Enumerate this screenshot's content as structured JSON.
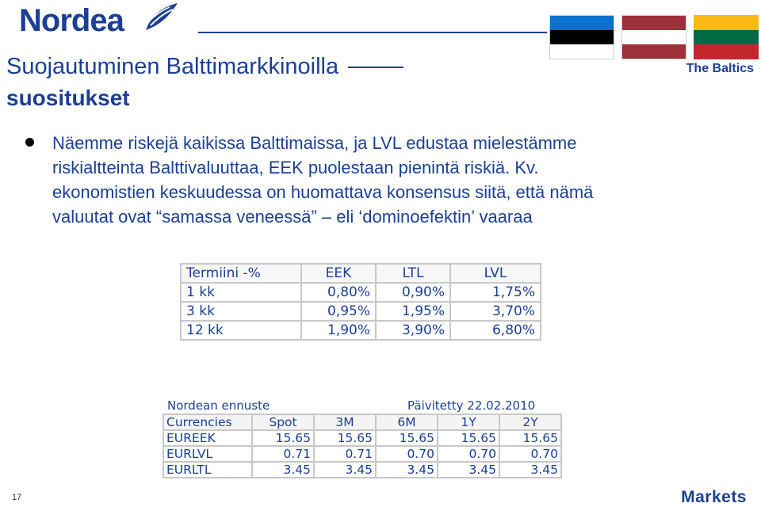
{
  "brand": {
    "logo_text": "Nordea",
    "tagline": "The Baltics",
    "footer_brand": "Markets"
  },
  "colors": {
    "brand_blue": "#1b3f93"
  },
  "flags": [
    {
      "name": "estonia-flag",
      "stripes": [
        "#0a72ce",
        "#000000",
        "#ffffff"
      ]
    },
    {
      "name": "latvia-flag",
      "stripes": [
        "#9e3039",
        "#ffffff",
        "#9e3039"
      ]
    },
    {
      "name": "lithuania-flag",
      "stripes": [
        "#fdb913",
        "#006a44",
        "#c1272d"
      ]
    }
  ],
  "title": {
    "line1": "Suojautuminen Balttimarkkinoilla",
    "line2": "suositukset"
  },
  "bullet": {
    "lines": [
      "Näemme riskejä kaikissa Balttimaissa, ja LVL edustaa mielestämme",
      "riskialtteinta Balttivaluuttaa, EEK puolestaan pienintä riskiä. Kv.",
      "ekonomistien keskuudessa on huomattava konsensus siitä, että nämä",
      "valuutat ovat “samassa veneessä” – eli ‘dominoefektin’ vaaraa"
    ]
  },
  "forward_table": {
    "headers": [
      "Termiini -%",
      "EEK",
      "LTL",
      "LVL"
    ],
    "rows": [
      [
        "1 kk",
        "0,80%",
        "0,90%",
        "1,75%"
      ],
      [
        "3 kk",
        "0,95%",
        "1,95%",
        "3,70%"
      ],
      [
        "12 kk",
        "1,90%",
        "3,90%",
        "6,80%"
      ]
    ]
  },
  "forecast": {
    "caption": "Nordean ennuste",
    "updated": "Päivitetty 22.02.2010",
    "headers": [
      "Currencies",
      "Spot",
      "3M",
      "6M",
      "1Y",
      "2Y"
    ],
    "rows": [
      [
        "EUREEK",
        "15.65",
        "15.65",
        "15.65",
        "15.65",
        "15.65"
      ],
      [
        "EURLVL",
        "0.71",
        "0.71",
        "0.70",
        "0.70",
        "0.70"
      ],
      [
        "EURLTL",
        "3.45",
        "3.45",
        "3.45",
        "3.45",
        "3.45"
      ]
    ]
  },
  "page_number": "17"
}
